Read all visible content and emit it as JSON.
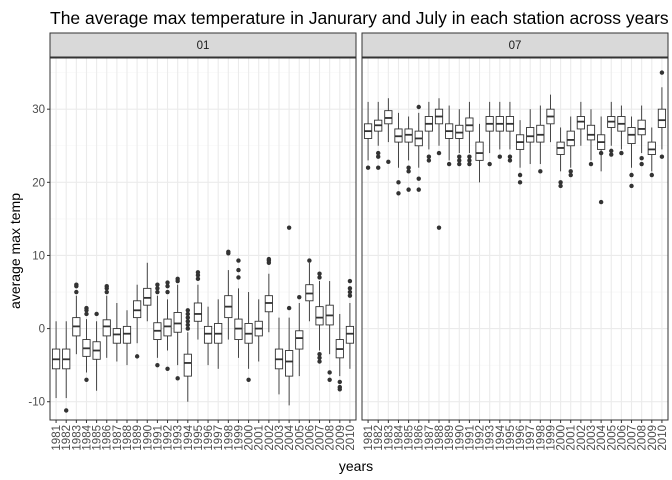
{
  "chart_data": {
    "type": "boxplot",
    "title": "The average max temperature in Janurary and July in each station across years",
    "xlabel": "years",
    "ylabel": "average max temp",
    "ylim": [
      -12.5,
      37
    ],
    "y_ticks": [
      -10,
      0,
      10,
      20,
      30
    ],
    "x_categories": [
      "1981",
      "1982",
      "1983",
      "1984",
      "1985",
      "1986",
      "1987",
      "1988",
      "1989",
      "1990",
      "1991",
      "1992",
      "1993",
      "1994",
      "1995",
      "1996",
      "1997",
      "1998",
      "1999",
      "2000",
      "2001",
      "2002",
      "2003",
      "2004",
      "2005",
      "2006",
      "2007",
      "2008",
      "2009",
      "2010"
    ],
    "grid": true,
    "colors": {
      "panel_border": "#333333",
      "strip_fill": "#d9d9d9",
      "grid_major": "#ebebeb",
      "grid_minor": "#f5f5f5",
      "box_line": "#333333"
    },
    "facets": [
      {
        "label": "01",
        "boxes": [
          {
            "year": "1981",
            "q1": -5.5,
            "median": -4.2,
            "q3": -2.8,
            "lo": -9.5,
            "hi": 1.0,
            "outliers": []
          },
          {
            "year": "1982",
            "q1": -5.5,
            "median": -4.2,
            "q3": -2.8,
            "lo": -9.5,
            "hi": 1.0,
            "outliers": [
              -11.2
            ]
          },
          {
            "year": "1983",
            "q1": -1.0,
            "median": 0.3,
            "q3": 1.5,
            "lo": -3.5,
            "hi": 4.5,
            "outliers": [
              5.0,
              5.8,
              6.0
            ]
          },
          {
            "year": "1984",
            "q1": -3.8,
            "median": -2.7,
            "q3": -1.5,
            "lo": -6.0,
            "hi": 1.3,
            "outliers": [
              2.0,
              2.5,
              2.8,
              -7.0
            ]
          },
          {
            "year": "1985",
            "q1": -4.2,
            "median": -3.0,
            "q3": -1.8,
            "lo": -8.5,
            "hi": 1.0,
            "outliers": [
              2.0
            ]
          },
          {
            "year": "1986",
            "q1": -1.0,
            "median": 0.3,
            "q3": 1.2,
            "lo": -4.0,
            "hi": 4.5,
            "outliers": [
              5.0,
              5.5,
              5.8
            ]
          },
          {
            "year": "1987",
            "q1": -2.0,
            "median": -0.8,
            "q3": 0.0,
            "lo": -4.5,
            "hi": 3.5,
            "outliers": []
          },
          {
            "year": "1988",
            "q1": -2.0,
            "median": -0.7,
            "q3": 0.3,
            "lo": -5.0,
            "hi": 2.5,
            "outliers": []
          },
          {
            "year": "1989",
            "q1": 1.5,
            "median": 2.5,
            "q3": 3.8,
            "lo": -2.0,
            "hi": 6.0,
            "outliers": [
              -3.8
            ]
          },
          {
            "year": "1990",
            "q1": 3.2,
            "median": 4.2,
            "q3": 5.5,
            "lo": 1.0,
            "hi": 9.0,
            "outliers": []
          },
          {
            "year": "1991",
            "q1": -1.5,
            "median": -0.3,
            "q3": 0.8,
            "lo": -4.0,
            "hi": 4.5,
            "outliers": [
              5.0,
              5.5,
              6.0,
              -5.0
            ]
          },
          {
            "year": "1992",
            "q1": -1.0,
            "median": 0.3,
            "q3": 1.3,
            "lo": -3.0,
            "hi": 4.0,
            "outliers": [
              5.0,
              5.8,
              6.3,
              -5.5
            ]
          },
          {
            "year": "1993",
            "q1": -0.5,
            "median": 0.7,
            "q3": 2.2,
            "lo": -5.0,
            "hi": 6.0,
            "outliers": [
              6.5,
              6.8,
              -6.8
            ]
          },
          {
            "year": "1994",
            "q1": -6.5,
            "median": -4.7,
            "q3": -3.5,
            "lo": -10.0,
            "hi": -0.5,
            "outliers": [
              0.0,
              0.5,
              1.0,
              1.5,
              2.0,
              2.5
            ]
          },
          {
            "year": "1995",
            "q1": 1.0,
            "median": 2.0,
            "q3": 3.5,
            "lo": -1.5,
            "hi": 6.0,
            "outliers": [
              6.8,
              7.3,
              7.7
            ]
          },
          {
            "year": "1996",
            "q1": -2.0,
            "median": -0.7,
            "q3": 0.3,
            "lo": -5.0,
            "hi": 3.0,
            "outliers": []
          },
          {
            "year": "1997",
            "q1": -2.0,
            "median": -0.7,
            "q3": 0.7,
            "lo": -5.5,
            "hi": 4.0,
            "outliers": []
          },
          {
            "year": "1998",
            "q1": 1.5,
            "median": 3.0,
            "q3": 4.5,
            "lo": -1.5,
            "hi": 8.0,
            "outliers": [
              10.3,
              10.5
            ]
          },
          {
            "year": "1999",
            "q1": -1.5,
            "median": 0.0,
            "q3": 1.3,
            "lo": -4.0,
            "hi": 5.5,
            "outliers": [
              7.0,
              8.0,
              9.3
            ]
          },
          {
            "year": "2000",
            "q1": -2.0,
            "median": -0.7,
            "q3": 0.7,
            "lo": -5.5,
            "hi": 5.0,
            "outliers": [
              -7.0
            ]
          },
          {
            "year": "2001",
            "q1": -1.0,
            "median": 0.0,
            "q3": 1.0,
            "lo": -4.5,
            "hi": 4.0,
            "outliers": []
          },
          {
            "year": "2002",
            "q1": 2.3,
            "median": 3.5,
            "q3": 4.5,
            "lo": -0.5,
            "hi": 7.5,
            "outliers": [
              9.0,
              9.3,
              9.5
            ]
          },
          {
            "year": "2003",
            "q1": -5.5,
            "median": -4.2,
            "q3": -2.8,
            "lo": -9.0,
            "hi": 1.5,
            "outliers": []
          },
          {
            "year": "2004",
            "q1": -6.5,
            "median": -4.5,
            "q3": -3.0,
            "lo": -10.5,
            "hi": 1.5,
            "outliers": [
              2.8,
              13.8
            ]
          },
          {
            "year": "2005",
            "q1": -2.8,
            "median": -1.3,
            "q3": -0.3,
            "lo": -6.5,
            "hi": 3.5,
            "outliers": [
              4.3
            ]
          },
          {
            "year": "2006",
            "q1": 3.8,
            "median": 4.8,
            "q3": 6.0,
            "lo": 1.0,
            "hi": 9.0,
            "outliers": [
              9.3
            ]
          },
          {
            "year": "2007",
            "q1": 0.5,
            "median": 1.5,
            "q3": 3.0,
            "lo": -3.0,
            "hi": 6.5,
            "outliers": [
              7.0,
              7.5,
              -3.5,
              -4.0,
              -4.5
            ]
          },
          {
            "year": "2008",
            "q1": 0.5,
            "median": 1.8,
            "q3": 3.2,
            "lo": -3.5,
            "hi": 6.5,
            "outliers": [
              -6.0,
              -7.0
            ]
          },
          {
            "year": "2009",
            "q1": -4.0,
            "median": -2.8,
            "q3": -1.5,
            "lo": -6.5,
            "hi": 2.0,
            "outliers": [
              -7.3,
              -8.0,
              -8.3
            ]
          },
          {
            "year": "2010",
            "q1": -2.0,
            "median": -0.7,
            "q3": 0.3,
            "lo": -5.5,
            "hi": 3.5,
            "outliers": [
              4.5,
              5.0,
              5.5,
              6.5
            ]
          }
        ]
      },
      {
        "label": "07",
        "boxes": [
          {
            "year": "1981",
            "q1": 26.0,
            "median": 27.0,
            "q3": 28.0,
            "lo": 23.0,
            "hi": 31.0,
            "outliers": [
              22.0
            ]
          },
          {
            "year": "1982",
            "q1": 27.0,
            "median": 27.8,
            "q3": 28.5,
            "lo": 25.0,
            "hi": 31.0,
            "outliers": [
              23.5,
              24.0,
              22.0
            ]
          },
          {
            "year": "1983",
            "q1": 28.0,
            "median": 28.8,
            "q3": 29.8,
            "lo": 25.5,
            "hi": 31.5,
            "outliers": [
              22.8
            ]
          },
          {
            "year": "1984",
            "q1": 25.5,
            "median": 26.3,
            "q3": 27.3,
            "lo": 22.0,
            "hi": 29.5,
            "outliers": [
              20.0,
              18.5
            ]
          },
          {
            "year": "1985",
            "q1": 25.5,
            "median": 26.5,
            "q3": 27.3,
            "lo": 23.0,
            "hi": 29.0,
            "outliers": [
              22.0,
              21.5,
              19.0
            ]
          },
          {
            "year": "1986",
            "q1": 25.0,
            "median": 26.0,
            "q3": 27.0,
            "lo": 22.0,
            "hi": 29.5,
            "outliers": [
              30.3,
              20.5,
              19.0
            ]
          },
          {
            "year": "1987",
            "q1": 27.0,
            "median": 28.0,
            "q3": 29.0,
            "lo": 24.5,
            "hi": 31.0,
            "outliers": [
              23.5,
              23.0
            ]
          },
          {
            "year": "1988",
            "q1": 28.0,
            "median": 29.0,
            "q3": 30.0,
            "lo": 25.0,
            "hi": 31.5,
            "outliers": [
              24.0,
              13.8
            ]
          },
          {
            "year": "1989",
            "q1": 26.0,
            "median": 27.0,
            "q3": 28.0,
            "lo": 23.0,
            "hi": 30.5,
            "outliers": [
              22.5
            ]
          },
          {
            "year": "1990",
            "q1": 26.0,
            "median": 26.8,
            "q3": 27.8,
            "lo": 24.0,
            "hi": 30.0,
            "outliers": [
              23.5,
              23.0,
              22.5
            ]
          },
          {
            "year": "1991",
            "q1": 27.0,
            "median": 27.8,
            "q3": 28.8,
            "lo": 24.0,
            "hi": 31.0,
            "outliers": [
              23.5,
              23.0,
              22.5
            ]
          },
          {
            "year": "1992",
            "q1": 23.0,
            "median": 24.0,
            "q3": 25.5,
            "lo": 20.0,
            "hi": 28.0,
            "outliers": []
          },
          {
            "year": "1993",
            "q1": 27.0,
            "median": 28.0,
            "q3": 29.0,
            "lo": 24.0,
            "hi": 31.0,
            "outliers": [
              22.5
            ]
          },
          {
            "year": "1994",
            "q1": 27.0,
            "median": 28.0,
            "q3": 29.0,
            "lo": 24.5,
            "hi": 31.0,
            "outliers": [
              23.5
            ]
          },
          {
            "year": "1995",
            "q1": 27.0,
            "median": 28.0,
            "q3": 29.0,
            "lo": 24.5,
            "hi": 31.0,
            "outliers": [
              23.5,
              23.0
            ]
          },
          {
            "year": "1996",
            "q1": 24.5,
            "median": 25.5,
            "q3": 26.5,
            "lo": 22.0,
            "hi": 28.5,
            "outliers": [
              21.0,
              20.0
            ]
          },
          {
            "year": "1997",
            "q1": 25.5,
            "median": 26.3,
            "q3": 27.5,
            "lo": 22.5,
            "hi": 30.0,
            "outliers": []
          },
          {
            "year": "1998",
            "q1": 25.5,
            "median": 26.5,
            "q3": 27.8,
            "lo": 22.5,
            "hi": 30.5,
            "outliers": [
              21.5
            ]
          },
          {
            "year": "1999",
            "q1": 28.0,
            "median": 29.0,
            "q3": 30.0,
            "lo": 25.5,
            "hi": 32.0,
            "outliers": []
          },
          {
            "year": "2000",
            "q1": 23.8,
            "median": 24.7,
            "q3": 25.5,
            "lo": 21.5,
            "hi": 27.5,
            "outliers": [
              20.0,
              19.5
            ]
          },
          {
            "year": "2001",
            "q1": 25.0,
            "median": 25.8,
            "q3": 27.0,
            "lo": 22.0,
            "hi": 29.0,
            "outliers": [
              21.5,
              21.0
            ]
          },
          {
            "year": "2002",
            "q1": 27.3,
            "median": 28.3,
            "q3": 29.0,
            "lo": 25.0,
            "hi": 31.0,
            "outliers": []
          },
          {
            "year": "2003",
            "q1": 25.8,
            "median": 26.5,
            "q3": 27.8,
            "lo": 23.0,
            "hi": 30.0,
            "outliers": [
              22.5
            ]
          },
          {
            "year": "2004",
            "q1": 24.5,
            "median": 25.5,
            "q3": 26.5,
            "lo": 21.5,
            "hi": 29.0,
            "outliers": [
              17.3,
              24.0
            ]
          },
          {
            "year": "2005",
            "q1": 27.5,
            "median": 28.3,
            "q3": 29.0,
            "lo": 25.0,
            "hi": 31.0,
            "outliers": [
              24.3,
              23.8
            ]
          },
          {
            "year": "2006",
            "q1": 27.0,
            "median": 28.0,
            "q3": 29.0,
            "lo": 24.5,
            "hi": 30.5,
            "outliers": [
              24.0
            ]
          },
          {
            "year": "2007",
            "q1": 25.3,
            "median": 26.5,
            "q3": 27.5,
            "lo": 22.0,
            "hi": 29.0,
            "outliers": [
              21.0,
              19.5
            ]
          },
          {
            "year": "2008",
            "q1": 26.5,
            "median": 27.3,
            "q3": 28.5,
            "lo": 24.0,
            "hi": 30.5,
            "outliers": [
              23.3,
              22.5
            ]
          },
          {
            "year": "2009",
            "q1": 23.8,
            "median": 24.5,
            "q3": 25.5,
            "lo": 21.5,
            "hi": 27.5,
            "outliers": [
              21.0
            ]
          },
          {
            "year": "2010",
            "q1": 27.5,
            "median": 28.5,
            "q3": 30.0,
            "lo": 24.5,
            "hi": 33.0,
            "outliers": [
              35.0,
              23.5
            ]
          }
        ]
      }
    ]
  }
}
